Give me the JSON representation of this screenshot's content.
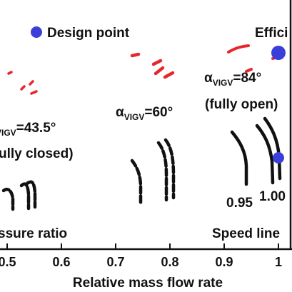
{
  "chart_data": {
    "type": "line",
    "xlabel": "Relative mass flow rate",
    "xlim": [
      0.45,
      1.02
    ],
    "xticks": [
      "0.5",
      "0.6",
      "0.7",
      "0.8",
      "0.9",
      "1"
    ],
    "xtick_values": [
      0.5,
      0.6,
      0.7,
      0.8,
      0.9,
      1.0
    ],
    "ylabel_fragment": "ssure ratio",
    "legend": {
      "design_point_label": "Design point",
      "efficiency_label_fragment": "Effici"
    },
    "annotations": {
      "group_closed": {
        "alpha": "α",
        "subscript": "VIGV",
        "value": "=43.5°",
        "note": "ully closed)"
      },
      "group_60": {
        "alpha": "α",
        "subscript": "VIGV",
        "value": "=60°"
      },
      "group_open": {
        "alpha": "α",
        "subscript": "VIGV",
        "value": "=84°",
        "note": "(fully open)"
      },
      "speed_095": "0.95",
      "speed_100": "1.00",
      "speed_line_label": "Speed line"
    },
    "design_points": [
      {
        "x": 1.0,
        "group": "efficiency"
      },
      {
        "x": 1.0,
        "group": "speed_lines"
      }
    ],
    "colors": {
      "design_point": "#3a3fd9",
      "efficiency": "#e8262d",
      "speed_line": "#111111"
    }
  }
}
